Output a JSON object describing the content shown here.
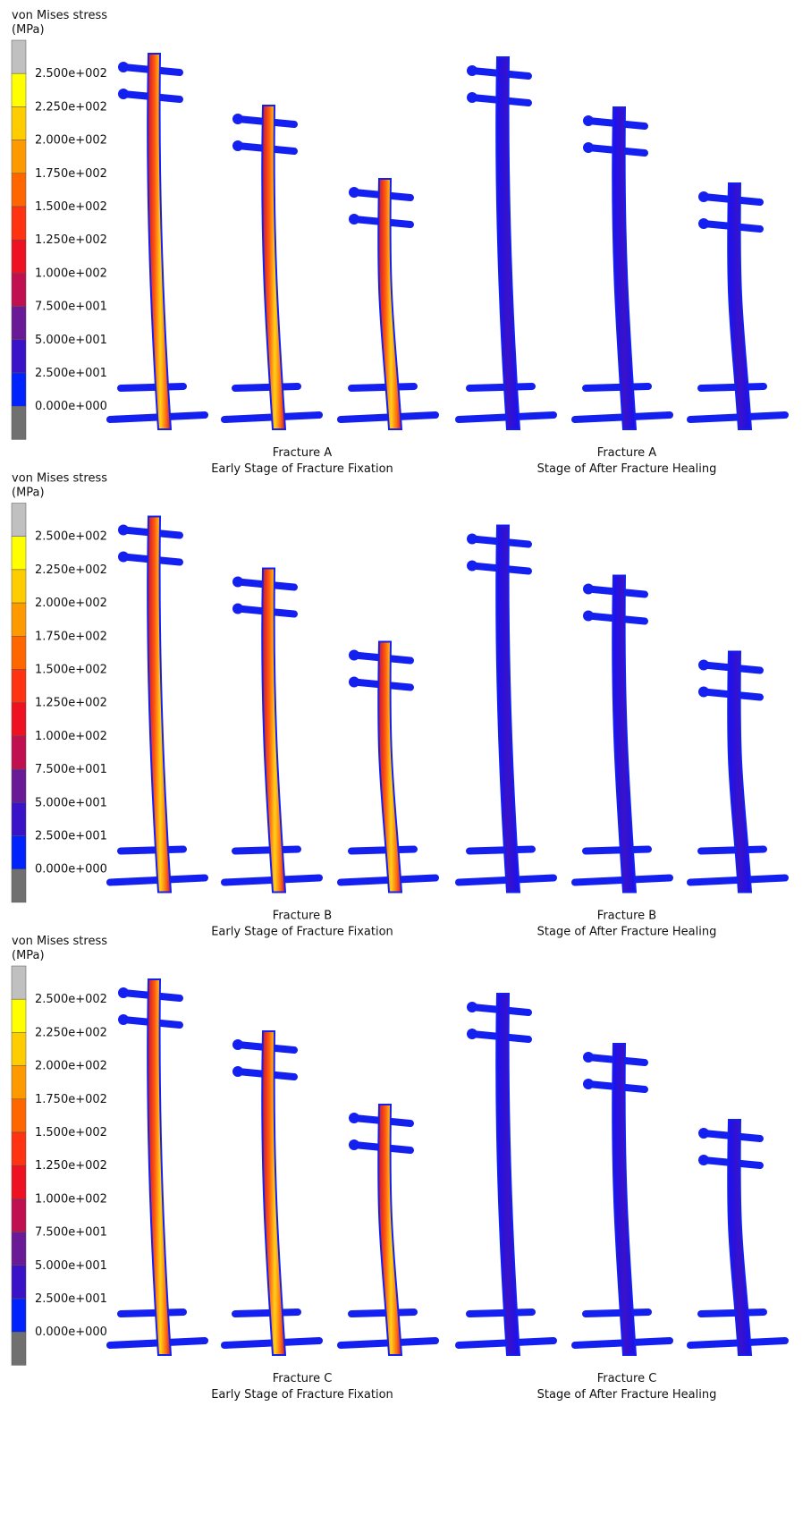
{
  "legend_colors": [
    "#c0c0c0",
    "#ffff00",
    "#ffcc00",
    "#ff9900",
    "#ff6600",
    "#ff3311",
    "#ee1122",
    "#c01050",
    "#6a1a96",
    "#3a12c8",
    "#0022ff",
    "#707070"
  ],
  "panels": [
    {
      "legend": {
        "title": "von Mises stress",
        "unit": "(MPa)",
        "labels": [
          "2.500e+002",
          "2.250e+002",
          "2.000e+002",
          "1.750e+002",
          "1.500e+002",
          "1.250e+002",
          "1.000e+002",
          "7.500e+001",
          "5.000e+001",
          "2.500e+001",
          "0.000e+000"
        ]
      },
      "captions": [
        {
          "fracture": "Fracture A",
          "stage": "Early Stage of Fracture Fixation"
        },
        {
          "fracture": "Fracture A",
          "stage": "Stage of After Fracture Healing"
        }
      ]
    },
    {
      "legend": {
        "title": "von Mises stress",
        "unit": "(MPa)",
        "labels": [
          "2.500e+002",
          "2.250e+002",
          "2.000e+002",
          "1.750e+002",
          "1.500e+002",
          "1.250e+002",
          "1.000e+002",
          "7.500e+001",
          "5.000e+001",
          "2.500e+001",
          "0.000e+000"
        ]
      },
      "captions": [
        {
          "fracture": "Fracture B",
          "stage": "Early Stage of Fracture Fixation"
        },
        {
          "fracture": "Fracture B",
          "stage": "Stage of After Fracture Healing"
        }
      ]
    },
    {
      "legend": {
        "title": "von Mises stress",
        "unit": "(MPa)",
        "labels": [
          "2.500e+002",
          "2.250e+002",
          "2.000e+002",
          "1.750e+002",
          "1.500e+002",
          "1.250e+002",
          "1.000e+002",
          "7.500e+001",
          "5.000e+001",
          "2.500e+001",
          "0.000e+000"
        ]
      },
      "captions": [
        {
          "fracture": "Fracture C",
          "stage": "Early Stage of Fracture Fixation"
        },
        {
          "fracture": "Fracture C",
          "stage": "Stage of After Fracture Healing"
        }
      ]
    }
  ]
}
